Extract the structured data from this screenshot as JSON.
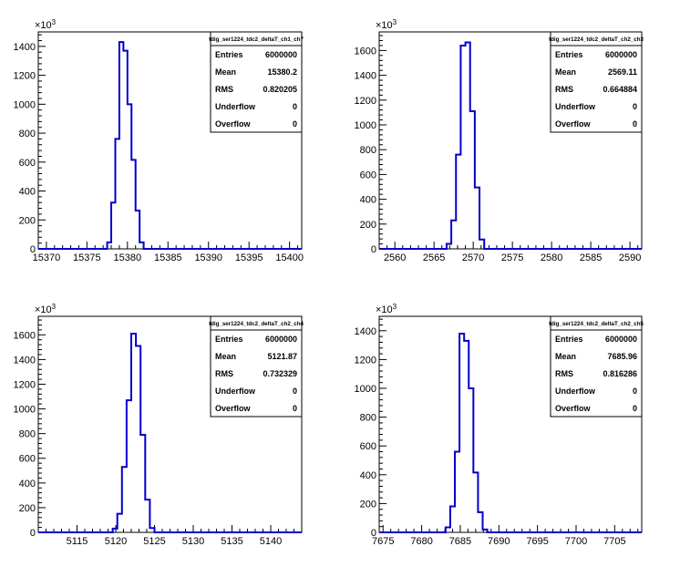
{
  "chart_data": [
    {
      "type": "histogram",
      "title": "tdig_ser1224_tdc2_deltaT_ch1_ch7",
      "y_multiplier_label": "×10³",
      "xlim": [
        15369,
        15401.5
      ],
      "ylim": [
        0,
        1500
      ],
      "xticks": [
        15370,
        15375,
        15380,
        15385,
        15390,
        15395,
        15400
      ],
      "yticks": [
        0,
        200,
        400,
        600,
        800,
        1000,
        1200,
        1400
      ],
      "bins": [
        15377,
        15377.5,
        15378,
        15378.5,
        15379,
        15379.5,
        15380,
        15380.5,
        15381,
        15381.5,
        15382
      ],
      "values": [
        0,
        45,
        320,
        760,
        1430,
        1370,
        1000,
        615,
        265,
        45,
        0
      ],
      "stats": [
        {
          "label": "Entries",
          "value": "6000000"
        },
        {
          "label": "Mean",
          "value": "15380.2"
        },
        {
          "label": "RMS",
          "value": "0.820205"
        },
        {
          "label": "Underflow",
          "value": "0"
        },
        {
          "label": "Overflow",
          "value": "0"
        }
      ],
      "line_color": "#0000cc"
    },
    {
      "type": "histogram",
      "title": "tdig_ser1224_tdc2_deltaT_ch2_ch3",
      "y_multiplier_label": "×10³",
      "xlim": [
        2558,
        2591.5
      ],
      "ylim": [
        0,
        1750
      ],
      "xticks": [
        2560,
        2565,
        2570,
        2575,
        2580,
        2585,
        2590
      ],
      "yticks": [
        0,
        200,
        400,
        600,
        800,
        1000,
        1200,
        1400,
        1600
      ],
      "bins": [
        2566,
        2566.6,
        2567.2,
        2567.8,
        2568.4,
        2569,
        2569.6,
        2570.2,
        2570.8,
        2571.4
      ],
      "values": [
        0,
        40,
        230,
        760,
        1640,
        1665,
        1110,
        495,
        75,
        0
      ],
      "stats": [
        {
          "label": "Entries",
          "value": "6000000"
        },
        {
          "label": "Mean",
          "value": "2569.11"
        },
        {
          "label": "RMS",
          "value": "0.664884"
        },
        {
          "label": "Underflow",
          "value": "0"
        },
        {
          "label": "Overflow",
          "value": "0"
        }
      ],
      "line_color": "#0000cc"
    },
    {
      "type": "histogram",
      "title": "tdig_ser1224_tdc2_deltaT_ch2_ch4",
      "y_multiplier_label": "×10³",
      "xlim": [
        5110,
        5144
      ],
      "ylim": [
        0,
        1750
      ],
      "xticks": [
        5115,
        5120,
        5125,
        5130,
        5135,
        5140
      ],
      "yticks": [
        0,
        200,
        400,
        600,
        800,
        1000,
        1200,
        1400,
        1600
      ],
      "bins": [
        5119,
        5119.6,
        5120.2,
        5120.8,
        5121.4,
        5122,
        5122.6,
        5123.2,
        5123.8,
        5124.4
      ],
      "values": [
        0,
        30,
        150,
        530,
        1070,
        1610,
        1510,
        790,
        265,
        35
      ],
      "stats": [
        {
          "label": "Entries",
          "value": "6000000"
        },
        {
          "label": "Mean",
          "value": "5121.87"
        },
        {
          "label": "RMS",
          "value": "0.732329"
        },
        {
          "label": "Underflow",
          "value": "0"
        },
        {
          "label": "Overflow",
          "value": "0"
        }
      ],
      "line_color": "#0000cc"
    },
    {
      "type": "histogram",
      "title": "tdig_ser1224_tdc2_deltaT_ch2_ch5",
      "y_multiplier_label": "×10³",
      "xlim": [
        7674.5,
        7708.5
      ],
      "ylim": [
        0,
        1500
      ],
      "xticks": [
        7675,
        7680,
        7685,
        7690,
        7695,
        7700,
        7705
      ],
      "yticks": [
        0,
        200,
        400,
        600,
        800,
        1000,
        1200,
        1400
      ],
      "bins": [
        7682.5,
        7683.1,
        7683.7,
        7684.3,
        7684.9,
        7685.5,
        7686.1,
        7686.7,
        7687.3,
        7687.9
      ],
      "values": [
        0,
        35,
        180,
        560,
        1380,
        1330,
        1000,
        415,
        140,
        20
      ],
      "stats": [
        {
          "label": "Entries",
          "value": "6000000"
        },
        {
          "label": "Mean",
          "value": "7685.96"
        },
        {
          "label": "RMS",
          "value": "0.816286"
        },
        {
          "label": "Underflow",
          "value": "0"
        },
        {
          "label": "Overflow",
          "value": "0"
        }
      ],
      "line_color": "#0000cc"
    }
  ]
}
